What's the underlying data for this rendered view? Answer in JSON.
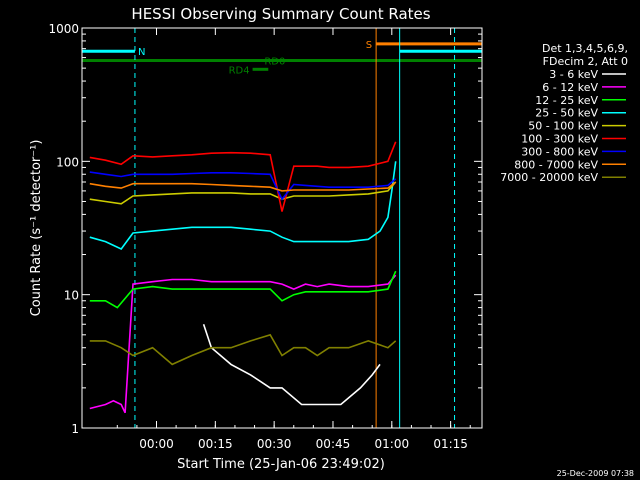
{
  "chart_data": {
    "type": "line",
    "title": "HESSI Observing Summary Count Rates",
    "xlabel": "Start Time (25-Jan-06 23:49:02)",
    "ylabel": "Count Rate (s⁻¹ detector⁻¹)",
    "x_unit": "minutes after 25-Jan-06 23:49:02",
    "xlim": [
      -8,
      94
    ],
    "ylim": [
      1,
      1000
    ],
    "yscale": "log",
    "x_ticks": [
      {
        "value": 11,
        "label": "00:00"
      },
      {
        "value": 26,
        "label": "00:15"
      },
      {
        "value": 41,
        "label": "00:30"
      },
      {
        "value": 56,
        "label": "00:45"
      },
      {
        "value": 71,
        "label": "01:00"
      },
      {
        "value": 86,
        "label": "01:15"
      }
    ],
    "y_ticks": [
      {
        "value": 1,
        "label": "1"
      },
      {
        "value": 10,
        "label": "10"
      },
      {
        "value": 100,
        "label": "100"
      },
      {
        "value": 1000,
        "label": "1000"
      }
    ],
    "legend_header": [
      "Det 1,3,4,5,6,9,",
      "FDecim 2, Att 0"
    ],
    "legend_position": "right",
    "series": [
      {
        "name": "3 - 6 keV",
        "color": "#ffffff",
        "x": [
          23,
          25,
          30,
          35,
          40,
          43,
          48,
          53,
          58,
          63,
          66,
          68
        ],
        "y": [
          6,
          4,
          3,
          2.5,
          2,
          2,
          1.5,
          1.5,
          1.5,
          2,
          2.5,
          3
        ]
      },
      {
        "name": "6 - 12 keV",
        "color": "#ff00ff",
        "x": [
          -6,
          -2,
          0,
          2,
          3,
          5,
          10,
          15,
          20,
          25,
          30,
          35,
          40,
          43,
          46,
          49,
          52,
          55,
          60,
          65,
          70,
          72
        ],
        "y": [
          1.4,
          1.5,
          1.6,
          1.5,
          1.3,
          12,
          12.5,
          13,
          13,
          12.5,
          12.5,
          12.5,
          12.5,
          12,
          11,
          12,
          11.5,
          12,
          11.5,
          11.5,
          12,
          14
        ]
      },
      {
        "name": "12 - 25 keV",
        "color": "#00ff00",
        "x": [
          -6,
          -2,
          1,
          5,
          10,
          15,
          20,
          25,
          30,
          35,
          40,
          43,
          46,
          49,
          52,
          55,
          60,
          65,
          70,
          72
        ],
        "y": [
          9,
          9,
          8,
          11,
          11.5,
          11,
          11,
          11,
          11,
          11,
          11,
          9,
          10,
          10.5,
          10.5,
          10.5,
          10.5,
          10.5,
          11,
          15
        ]
      },
      {
        "name": "25 - 50 keV",
        "color": "#00ffff",
        "x": [
          -6,
          -2,
          2,
          5,
          10,
          15,
          20,
          25,
          30,
          35,
          40,
          43,
          46,
          49,
          52,
          55,
          60,
          65,
          68,
          70,
          71,
          72
        ],
        "y": [
          27,
          25,
          22,
          29,
          30,
          31,
          32,
          32,
          32,
          31,
          30,
          27,
          25,
          25,
          25,
          25,
          25,
          26,
          30,
          38,
          60,
          100
        ]
      },
      {
        "name": "50 - 100 keV",
        "color": "#cccc00",
        "x": [
          -6,
          -2,
          2,
          5,
          10,
          15,
          20,
          25,
          30,
          35,
          40,
          43,
          46,
          49,
          52,
          55,
          60,
          65,
          70,
          72
        ],
        "y": [
          52,
          50,
          48,
          55,
          56,
          57,
          58,
          58,
          58,
          57,
          57,
          52,
          55,
          55,
          55,
          55,
          56,
          57,
          60,
          70
        ]
      },
      {
        "name": "100 - 300 keV",
        "color": "#ff0000",
        "x": [
          -6,
          -2,
          2,
          5,
          10,
          15,
          20,
          25,
          30,
          35,
          40,
          43,
          46,
          49,
          52,
          55,
          60,
          65,
          70,
          72
        ],
        "y": [
          107,
          102,
          95,
          110,
          108,
          110,
          112,
          115,
          116,
          115,
          112,
          42,
          92,
          92,
          92,
          90,
          90,
          92,
          100,
          140
        ]
      },
      {
        "name": "300 - 800 keV",
        "color": "#0000ff",
        "x": [
          -6,
          -2,
          2,
          5,
          10,
          15,
          20,
          25,
          30,
          35,
          40,
          43,
          46,
          49,
          52,
          55,
          60,
          65,
          70,
          72
        ],
        "y": [
          83,
          80,
          77,
          80,
          80,
          80,
          81,
          82,
          82,
          81,
          80,
          52,
          67,
          66,
          65,
          64,
          64,
          64,
          66,
          74
        ]
      },
      {
        "name": "800 - 7000 keV",
        "color": "#ff8000",
        "x": [
          -6,
          -2,
          2,
          5,
          10,
          15,
          20,
          25,
          30,
          35,
          40,
          43,
          46,
          49,
          52,
          55,
          60,
          65,
          70,
          72
        ],
        "y": [
          68,
          65,
          63,
          68,
          68,
          68,
          68,
          67,
          66,
          65,
          64,
          60,
          61,
          61,
          61,
          61,
          61,
          62,
          63,
          70
        ]
      },
      {
        "name": "7000 - 20000 keV",
        "color": "#808000",
        "x": [
          -6,
          -2,
          2,
          5,
          10,
          15,
          20,
          25,
          30,
          35,
          40,
          43,
          46,
          49,
          52,
          55,
          60,
          65,
          70,
          72
        ],
        "y": [
          4.5,
          4.5,
          4,
          3.5,
          4,
          3,
          3.5,
          4,
          4,
          4.5,
          5,
          3.5,
          4,
          4,
          3.5,
          4,
          4,
          4.5,
          4,
          4.5
        ]
      }
    ],
    "flags": [
      {
        "label": "N",
        "color": "#00ffff",
        "segments": [
          [
            -8,
            5.5
          ]
        ],
        "y": 670
      },
      {
        "label": "S",
        "color": "#ff8000",
        "segments": [
          [
            67,
            94
          ]
        ],
        "y": 760
      },
      {
        "label": "",
        "color": "#00ffff",
        "segments": [
          [
            73,
            94
          ]
        ],
        "y": 670
      },
      {
        "label": "",
        "color": "#008000",
        "segments": [
          [
            -8,
            94
          ]
        ],
        "y": 570
      },
      {
        "label": "RD4",
        "color": "#008000",
        "segments": [
          [
            35.5,
            39.5
          ]
        ],
        "y": 490
      },
      {
        "label": "RD0",
        "color": "#008000",
        "segments": [],
        "y": 570
      }
    ],
    "vertical_lines": [
      {
        "x": -8,
        "color": "#00ffff",
        "style": "solid"
      },
      {
        "x": 5.5,
        "color": "#00ffff",
        "style": "dashed"
      },
      {
        "x": 67,
        "color": "#ff8000",
        "style": "solid"
      },
      {
        "x": 73,
        "color": "#00ffff",
        "style": "solid"
      },
      {
        "x": 87,
        "color": "#00ffff",
        "style": "dashed"
      }
    ],
    "footer_date": "25-Dec-2009 07:38"
  }
}
